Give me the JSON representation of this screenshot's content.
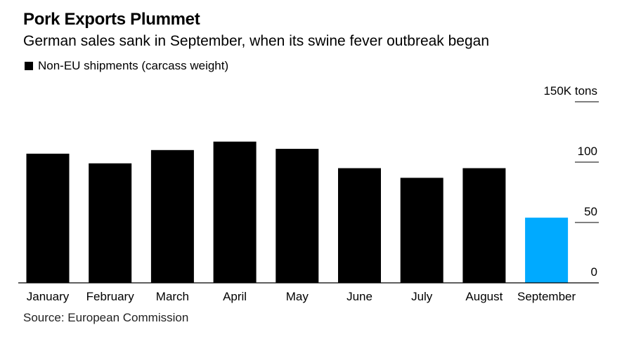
{
  "title": "Pork Exports Plummet",
  "subtitle": "German sales sank in September, when its swine fever outbreak began",
  "legend_label": "Non-EU shipments (carcass weight)",
  "source": "Source: European Commission",
  "colors": {
    "default_bar": "#000000",
    "highlight_bar": "#00aaff"
  },
  "chart_data": {
    "type": "bar",
    "title": "Pork Exports Plummet",
    "subtitle": "German sales sank in September, when its swine fever outbreak began",
    "categories": [
      "January",
      "February",
      "March",
      "April",
      "May",
      "June",
      "July",
      "August",
      "September"
    ],
    "series": [
      {
        "name": "Non-EU shipments (carcass weight)",
        "values": [
          107,
          99,
          110,
          117,
          111,
          95,
          87,
          95,
          54
        ]
      }
    ],
    "highlight_category": "September",
    "ylim": [
      0,
      150
    ],
    "yticks": [
      {
        "value": 0,
        "label": "0"
      },
      {
        "value": 50,
        "label": "50"
      },
      {
        "value": 100,
        "label": "100"
      },
      {
        "value": 150,
        "label": "150K tons"
      }
    ],
    "xlabel": "",
    "ylabel": "",
    "y_axis_side": "right",
    "grid": false,
    "legend": "top-left"
  }
}
